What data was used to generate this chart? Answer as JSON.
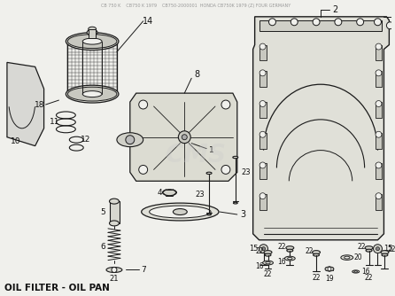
{
  "caption": "OIL FILTER - OIL PAN",
  "header": "CB 750 K    CB750 K 1979    CB750-2000001  HONDA CB750K 1979 (Z) FOUR GERMANY",
  "bg_color": "#f0f0ec",
  "line_color": "#1a1a1a",
  "text_color": "#111111",
  "watermark": "CMS",
  "fig_width": 4.46,
  "fig_height": 3.34,
  "dpi": 100
}
